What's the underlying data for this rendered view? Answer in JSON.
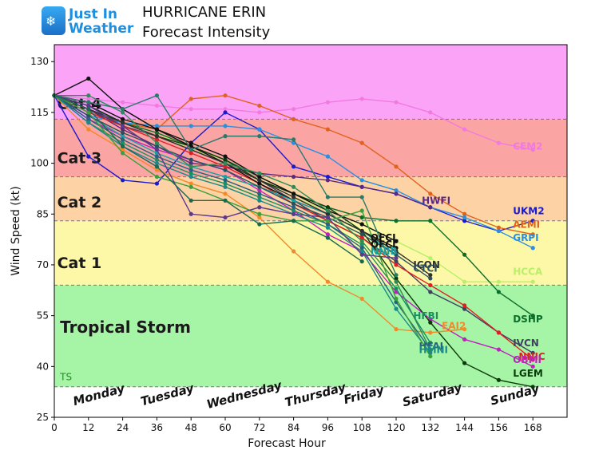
{
  "logo": {
    "word1": "Just In",
    "word2": "Weather",
    "icon": "sun-cloud-snow-icon"
  },
  "title": "HURRICANE ERIN",
  "subtitle": "Forecast Intensity",
  "chart_data": {
    "type": "line",
    "xlabel": "Forecast Hour",
    "ylabel": "Wind Speed (kt)",
    "xlim": [
      0,
      180
    ],
    "ylim": [
      25,
      135
    ],
    "xticks": [
      0,
      12,
      24,
      36,
      48,
      60,
      72,
      84,
      96,
      108,
      120,
      132,
      144,
      156,
      168
    ],
    "yticks": [
      25,
      40,
      55,
      70,
      85,
      100,
      115,
      130
    ],
    "grid": false,
    "bands": [
      {
        "label": "",
        "from": 25,
        "to": 34,
        "color": "#ffffff"
      },
      {
        "label": "TS",
        "from": 34,
        "to": 64,
        "color": "#a6f5a6"
      },
      {
        "label": "Cat 1",
        "from": 64,
        "to": 83,
        "color": "#fdf7a8"
      },
      {
        "label": "Cat 2",
        "from": 83,
        "to": 96,
        "color": "#fdd3a6"
      },
      {
        "label": "Cat 3",
        "from": 96,
        "to": 113,
        "color": "#fba4a4"
      },
      {
        "label": "Cat 4",
        "from": 113,
        "to": 135,
        "color": "#fba4f7"
      }
    ],
    "category_labels": [
      {
        "text": "Cat 4",
        "y": 116
      },
      {
        "text": "Cat 3",
        "y": 100
      },
      {
        "text": "Cat 2",
        "y": 87
      },
      {
        "text": "Cat 1",
        "y": 69
      },
      {
        "text": "Tropical Storm",
        "y": 50
      }
    ],
    "days": [
      {
        "text": "Monday",
        "x": 16
      },
      {
        "text": "Tuesday",
        "x": 40
      },
      {
        "text": "Wednesday",
        "x": 67
      },
      {
        "text": "Thursday",
        "x": 92
      },
      {
        "text": "Friday",
        "x": 109
      },
      {
        "text": "Saturday",
        "x": 133
      },
      {
        "text": "Sunday",
        "x": 162
      }
    ],
    "series": [
      {
        "name": "CEM2",
        "color": "#f07ae0",
        "label_at": [
          161,
          104
        ],
        "x": [
          0,
          12,
          24,
          36,
          48,
          60,
          72,
          84,
          96,
          108,
          120,
          132,
          144,
          156,
          168
        ],
        "values": [
          120,
          119,
          118,
          117,
          116,
          116,
          115,
          116,
          118,
          119,
          118,
          115,
          110,
          106,
          104
        ]
      },
      {
        "name": "UKM2",
        "color": "#1a1ad0",
        "label_at": [
          161,
          85
        ],
        "x": [
          0,
          12,
          24,
          36,
          48,
          60,
          72,
          84,
          96,
          108,
          120,
          132,
          144,
          156,
          168
        ],
        "values": [
          120,
          102,
          95,
          94,
          106,
          115,
          110,
          99,
          96,
          93,
          91,
          87,
          83,
          80,
          83
        ]
      },
      {
        "name": "AEMI",
        "color": "#e0621e",
        "label_at": [
          161,
          81
        ],
        "x": [
          0,
          12,
          24,
          36,
          48,
          60,
          72,
          84,
          96,
          108,
          120,
          132,
          144,
          156,
          168
        ],
        "values": [
          120,
          115,
          112,
          110,
          119,
          120,
          117,
          113,
          110,
          106,
          99,
          91,
          85,
          81,
          79
        ]
      },
      {
        "name": "GRPI",
        "color": "#2a8fe0",
        "label_at": [
          161,
          77
        ],
        "x": [
          0,
          12,
          24,
          36,
          48,
          60,
          72,
          84,
          96,
          108,
          120,
          132,
          144,
          156,
          168
        ],
        "values": [
          120,
          114,
          112,
          111,
          111,
          111,
          110,
          106,
          102,
          95,
          92,
          87,
          84,
          80,
          75
        ]
      },
      {
        "name": "HWFI",
        "color": "#5b2a80",
        "label_at": [
          129,
          88
        ],
        "x": [
          0,
          12,
          24,
          36,
          48,
          60,
          72,
          84,
          96,
          108,
          120,
          132
        ],
        "values": [
          120,
          116,
          110,
          105,
          100,
          99,
          97,
          96,
          95,
          93,
          91,
          87
        ]
      },
      {
        "name": "HCCA",
        "color": "#b8f06a",
        "label_at": [
          161,
          67
        ],
        "x": [
          0,
          12,
          24,
          36,
          48,
          60,
          72,
          84,
          96,
          108,
          120,
          132,
          144,
          156,
          168
        ],
        "values": [
          120,
          116,
          112,
          109,
          104,
          101,
          95,
          90,
          86,
          82,
          77,
          72,
          65,
          65,
          65
        ]
      },
      {
        "name": "DSHP",
        "color": "#0b6e2a",
        "label_at": [
          161,
          53
        ],
        "x": [
          0,
          12,
          24,
          36,
          48,
          60,
          72,
          84,
          96,
          108,
          120,
          132,
          144,
          156,
          168
        ],
        "values": [
          120,
          117,
          112,
          109,
          105,
          101,
          96,
          91,
          87,
          84,
          83,
          83,
          73,
          62,
          55
        ]
      },
      {
        "name": "IVCN",
        "color": "#404060",
        "label_at": [
          161,
          46
        ],
        "x": [
          0,
          12,
          24,
          36,
          48,
          60,
          72,
          84,
          96,
          108,
          120,
          132,
          144,
          156,
          168
        ],
        "values": [
          120,
          116,
          111,
          108,
          104,
          100,
          95,
          89,
          83,
          78,
          71,
          62,
          57,
          50,
          44
        ]
      },
      {
        "name": "NNIC",
        "color": "#e02020",
        "label_at": [
          163,
          42
        ],
        "x": [
          0,
          12,
          24,
          36,
          48,
          60,
          72,
          84,
          96,
          108,
          120,
          132,
          144,
          156,
          168
        ],
        "values": [
          120,
          115,
          111,
          107,
          103,
          99,
          94,
          88,
          83,
          78,
          70,
          64,
          58,
          50,
          42
        ]
      },
      {
        "name": "OBMI",
        "color": "#c020c0",
        "label_at": [
          161,
          41
        ],
        "x": [
          0,
          12,
          24,
          36,
          48,
          60,
          72,
          84,
          96,
          108,
          120,
          132,
          144,
          156,
          168
        ],
        "values": [
          120,
          113,
          108,
          104,
          101,
          98,
          92,
          86,
          79,
          74,
          62,
          54,
          48,
          45,
          40
        ]
      },
      {
        "name": "LGEM",
        "color": "#0a3a0a",
        "label_at": [
          161,
          37
        ],
        "x": [
          0,
          12,
          24,
          36,
          48,
          60,
          72,
          84,
          96,
          108,
          120,
          132,
          144,
          156,
          168
        ],
        "values": [
          120,
          117,
          112,
          108,
          105,
          101,
          95,
          91,
          87,
          80,
          66,
          53,
          41,
          36,
          34
        ]
      },
      {
        "name": "EAI2",
        "color": "#f08a2a",
        "label_at": [
          136,
          51
        ],
        "x": [
          0,
          12,
          24,
          36,
          48,
          60,
          72,
          84,
          96,
          108,
          120,
          132,
          144
        ],
        "values": [
          120,
          110,
          104,
          98,
          94,
          91,
          84,
          74,
          65,
          60,
          51,
          50,
          51
        ]
      },
      {
        "name": "OFCL",
        "color": "#101010",
        "label_at": [
          111,
          77
        ],
        "x": [
          0,
          12,
          24,
          36,
          48,
          60,
          72,
          84,
          96,
          108,
          120
        ],
        "values": [
          120,
          118,
          113,
          110,
          106,
          102,
          96,
          91,
          86,
          82,
          77
        ]
      },
      {
        "name": "OFCI",
        "color": "#101010",
        "label_at": [
          111,
          75
        ],
        "x": [
          0,
          12,
          24,
          36,
          48,
          60,
          72,
          84,
          96,
          108,
          120
        ],
        "values": [
          120,
          125,
          116,
          110,
          105,
          100,
          94,
          89,
          85,
          80,
          75
        ]
      },
      {
        "name": "NNIB",
        "color": "#1aa0a0",
        "label_at": [
          111,
          73
        ],
        "x": [
          0,
          12,
          24,
          36,
          48,
          60,
          72,
          84,
          96,
          108,
          120
        ],
        "values": [
          120,
          114,
          108,
          103,
          99,
          96,
          93,
          89,
          85,
          80,
          73
        ]
      },
      {
        "name": "ICON",
        "color": "#303030",
        "label_at": [
          126,
          69
        ],
        "x": [
          0,
          12,
          24,
          36,
          48,
          60,
          72,
          84,
          96,
          108,
          120,
          132
        ],
        "values": [
          120,
          116,
          112,
          108,
          104,
          100,
          95,
          90,
          85,
          80,
          74,
          67
        ]
      },
      {
        "name": "CTCI",
        "color": "#2a5060",
        "label_at": [
          126,
          68
        ],
        "x": [
          0,
          12,
          24,
          36,
          48,
          60,
          72,
          84,
          96,
          108,
          120,
          132
        ],
        "values": [
          120,
          114,
          109,
          105,
          101,
          98,
          93,
          88,
          84,
          79,
          73,
          66
        ]
      },
      {
        "name": "HFBI",
        "color": "#1a9060",
        "label_at": [
          126,
          54
        ],
        "x": [
          0,
          12,
          24,
          36,
          48,
          60,
          72,
          84,
          96,
          108,
          120,
          132
        ],
        "values": [
          120,
          112,
          106,
          101,
          97,
          94,
          90,
          86,
          82,
          76,
          63,
          47
        ]
      },
      {
        "name": "HFAI",
        "color": "#2a6080",
        "label_at": [
          128,
          45
        ],
        "x": [
          0,
          12,
          24,
          36,
          48,
          60,
          72,
          84,
          96,
          108,
          120,
          132
        ],
        "values": [
          120,
          113,
          107,
          102,
          98,
          95,
          91,
          87,
          82,
          75,
          59,
          45
        ]
      },
      {
        "name": "HMNI",
        "color": "#1a8a8a",
        "label_at": [
          128,
          44
        ],
        "x": [
          0,
          12,
          24,
          36,
          48,
          60,
          72,
          84,
          96,
          108,
          120,
          132
        ],
        "values": [
          120,
          112,
          105,
          100,
          96,
          93,
          89,
          85,
          81,
          74,
          57,
          44
        ]
      },
      {
        "name": "",
        "color": "#2e8b57",
        "label_at": null,
        "x": [
          0,
          12,
          24,
          36,
          48,
          60,
          72,
          84,
          96,
          108,
          120,
          132
        ],
        "values": [
          120,
          120,
          115,
          106,
          99,
          100,
          97,
          93,
          86,
          77,
          65,
          45
        ]
      },
      {
        "name": "",
        "color": "#3aa03a",
        "label_at": null,
        "x": [
          0,
          12,
          24,
          36,
          48,
          60,
          72,
          84,
          96,
          108,
          120,
          132
        ],
        "values": [
          120,
          115,
          103,
          96,
          93,
          89,
          85,
          83,
          83,
          86,
          60,
          43
        ]
      },
      {
        "name": "",
        "color": "#2a7a6a",
        "label_at": null,
        "x": [
          0,
          12,
          24,
          36,
          48,
          60,
          72,
          84,
          96,
          108,
          120
        ],
        "values": [
          120,
          118,
          116,
          120,
          104,
          108,
          108,
          107,
          90,
          90,
          67
        ]
      },
      {
        "name": "",
        "color": "#5a3a8a",
        "label_at": null,
        "x": [
          0,
          12,
          24,
          36,
          48,
          60,
          72,
          84,
          96,
          108,
          120
        ],
        "values": [
          120,
          117,
          111,
          104,
          85,
          84,
          87,
          85,
          84,
          73,
          72
        ]
      },
      {
        "name": "",
        "color": "#1a6a50",
        "label_at": null,
        "x": [
          0,
          12,
          24,
          36,
          48,
          60,
          72,
          84,
          96,
          108
        ],
        "values": [
          120,
          116,
          105,
          99,
          89,
          89,
          82,
          83,
          78,
          71
        ]
      }
    ]
  }
}
